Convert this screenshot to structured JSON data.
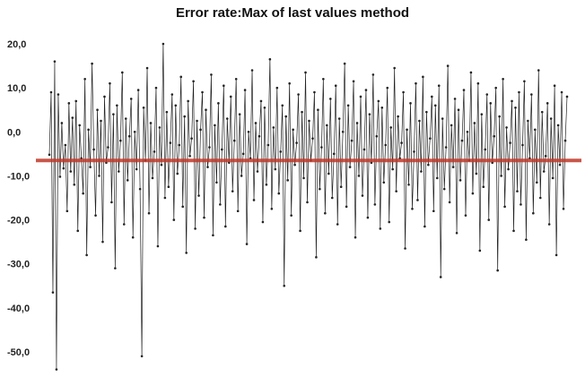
{
  "chart_data": {
    "type": "line",
    "title": "Error rate:Max of last values method",
    "xlabel": "",
    "ylabel": "",
    "ylim": [
      -55,
      20
    ],
    "yticks": [
      20,
      10,
      0,
      -10,
      -20,
      -30,
      -40,
      -50
    ],
    "ytick_labels": [
      "20,0",
      "10,0",
      "0,0",
      "-10,0",
      "-20,0",
      "-30,0",
      "-40,0",
      "-50,0"
    ],
    "grid": false,
    "legend": "none",
    "reference_line": {
      "y": -6.5,
      "color": "#c0392b"
    },
    "series": [
      {
        "color": "#222222",
        "values": [
          -5.2,
          9.0,
          -36.5,
          16.0,
          -54.0,
          8.5,
          -10.2,
          2.0,
          -8.3,
          -3.0,
          -18.0,
          6.5,
          -9.0,
          3.2,
          -12.0,
          7.0,
          -22.5,
          1.5,
          -6.0,
          -14.0,
          12.0,
          -28.0,
          0.5,
          -8.0,
          15.5,
          -4.0,
          -19.0,
          5.0,
          -10.0,
          2.5,
          -25.0,
          8.0,
          -7.0,
          -3.5,
          11.0,
          -16.0,
          4.0,
          -31.0,
          6.0,
          -9.0,
          -2.0,
          13.5,
          -21.0,
          3.0,
          -11.0,
          -1.0,
          7.5,
          -24.0,
          0.0,
          -8.5,
          9.5,
          -13.0,
          -51.0,
          5.5,
          -6.5,
          14.5,
          -18.5,
          2.0,
          -10.5,
          -4.5,
          10.0,
          -26.0,
          1.0,
          -7.5,
          20.0,
          -15.0,
          4.5,
          -12.5,
          -2.5,
          8.5,
          -20.0,
          6.0,
          -9.5,
          -3.0,
          12.5,
          -17.0,
          3.5,
          -27.5,
          7.0,
          -5.5,
          -1.5,
          11.5,
          -22.0,
          2.5,
          -14.5,
          0.5,
          9.0,
          -19.5,
          5.0,
          -8.0,
          -3.5,
          13.0,
          -23.5,
          1.5,
          -11.5,
          6.5,
          -16.5,
          -4.0,
          10.5,
          -21.5,
          3.0,
          -7.0,
          8.0,
          -13.5,
          -2.0,
          12.0,
          -18.0,
          4.0,
          -10.0,
          -5.0,
          9.5,
          -25.5,
          0.0,
          -6.0,
          14.0,
          -15.5,
          2.0,
          -9.0,
          -1.0,
          7.0,
          -20.5,
          5.5,
          -12.0,
          -3.0,
          16.5,
          -17.5,
          1.0,
          -8.5,
          10.0,
          -14.0,
          -4.5,
          6.0,
          -35.0,
          3.5,
          -11.0,
          11.0,
          -19.0,
          0.5,
          -7.5,
          -2.5,
          8.5,
          -22.5,
          4.5,
          -10.5,
          13.5,
          -16.0,
          2.5,
          -6.5,
          -1.5,
          9.0,
          -28.5,
          5.0,
          -13.0,
          -3.5,
          12.0,
          -18.5,
          1.5,
          -9.5,
          7.5,
          -15.0,
          -5.0,
          10.5,
          -21.0,
          3.0,
          -12.5,
          0.0,
          15.5,
          -17.0,
          6.0,
          -8.0,
          -2.0,
          11.5,
          -24.0,
          2.0,
          -10.0,
          8.0,
          -14.5,
          -4.0,
          9.5,
          -19.5,
          4.0,
          -7.0,
          13.0,
          -16.5,
          -1.0,
          7.0,
          -22.0,
          5.5,
          -11.5,
          -3.0,
          10.0,
          -20.5,
          1.0,
          -8.5,
          14.5,
          -13.5,
          3.5,
          -6.0,
          -2.5,
          9.0,
          -26.5,
          0.5,
          -12.0,
          6.5,
          -17.5,
          -4.5,
          11.0,
          -15.5,
          2.5,
          -9.0,
          12.5,
          -21.5,
          4.5,
          -7.5,
          -1.5,
          8.0,
          -18.0,
          6.0,
          -10.5,
          10.5,
          -33.0,
          3.0,
          -13.0,
          -3.5,
          15.0,
          -16.0,
          1.5,
          -8.0,
          7.5,
          -23.0,
          5.0,
          -11.0,
          -2.0,
          9.5,
          -19.0,
          0.0,
          -6.5,
          13.5,
          -14.0,
          2.0,
          -9.5,
          11.0,
          -27.0,
          4.0,
          -12.5,
          -4.0,
          8.5,
          -20.0,
          6.5,
          -7.0,
          -1.0,
          10.0,
          -31.5,
          3.5,
          -10.0,
          12.0,
          -17.0,
          1.0,
          -8.5,
          -2.5,
          7.0,
          -22.5,
          5.5,
          -13.5,
          9.0,
          -16.5,
          -3.0,
          11.5,
          -24.5,
          2.5,
          -6.0,
          8.5,
          -18.5,
          0.5,
          -11.5,
          14.0,
          -15.0,
          4.5,
          -9.0,
          -5.5,
          6.5,
          -21.0,
          3.0,
          -10.5,
          10.5,
          -28.0,
          1.5,
          -7.5,
          9.0,
          -17.5,
          -2.0,
          8.0
        ]
      }
    ]
  }
}
